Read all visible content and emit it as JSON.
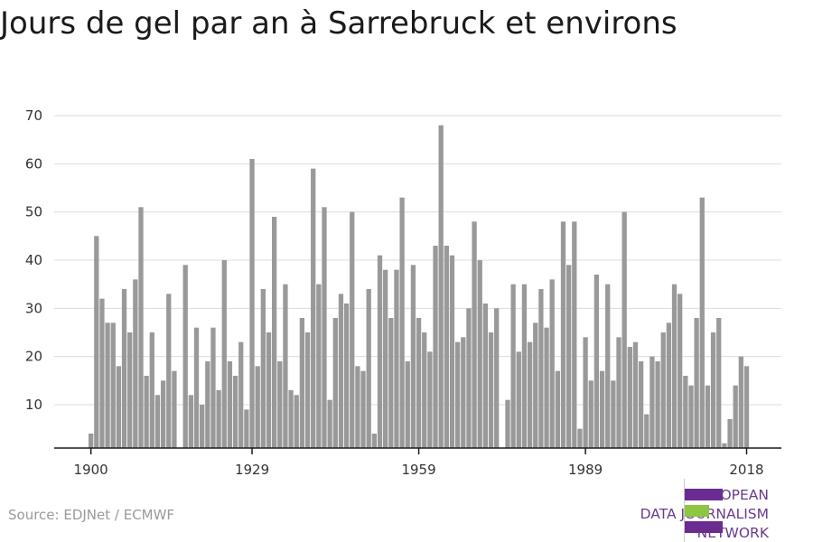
{
  "chart_data": {
    "type": "bar",
    "title": "Jours de gel par an à Sarrebruck et environs",
    "xlabel": "",
    "ylabel": "",
    "x_ticks": [
      "1900",
      "1929",
      "1959",
      "1989",
      "2018"
    ],
    "y_ticks": [
      10,
      20,
      30,
      40,
      50,
      60,
      70
    ],
    "ylim": [
      1,
      72
    ],
    "grid": true,
    "bar_color": "#999999",
    "start_year": 1900,
    "end_year": 2018,
    "categories": [
      1900,
      1901,
      1902,
      1903,
      1904,
      1905,
      1906,
      1907,
      1908,
      1909,
      1910,
      1911,
      1912,
      1913,
      1914,
      1915,
      1916,
      1917,
      1918,
      1919,
      1920,
      1921,
      1922,
      1923,
      1924,
      1925,
      1926,
      1927,
      1928,
      1929,
      1930,
      1931,
      1932,
      1933,
      1934,
      1935,
      1936,
      1937,
      1938,
      1939,
      1940,
      1941,
      1942,
      1943,
      1944,
      1945,
      1946,
      1947,
      1948,
      1949,
      1950,
      1951,
      1952,
      1953,
      1954,
      1955,
      1956,
      1957,
      1958,
      1959,
      1960,
      1961,
      1962,
      1963,
      1964,
      1965,
      1966,
      1967,
      1968,
      1969,
      1970,
      1971,
      1972,
      1973,
      1974,
      1975,
      1976,
      1977,
      1978,
      1979,
      1980,
      1981,
      1982,
      1983,
      1984,
      1985,
      1986,
      1987,
      1988,
      1989,
      1990,
      1991,
      1992,
      1993,
      1994,
      1995,
      1996,
      1997,
      1998,
      1999,
      2000,
      2001,
      2002,
      2003,
      2004,
      2005,
      2006,
      2007,
      2008,
      2009,
      2010,
      2011,
      2012,
      2013,
      2014,
      2015,
      2016,
      2017,
      2018
    ],
    "values": [
      4,
      45,
      32,
      27,
      27,
      18,
      34,
      25,
      36,
      51,
      16,
      25,
      12,
      15,
      33,
      17,
      null,
      39,
      12,
      26,
      10,
      19,
      26,
      13,
      40,
      19,
      16,
      23,
      9,
      61,
      18,
      34,
      25,
      49,
      19,
      35,
      13,
      12,
      28,
      25,
      59,
      35,
      51,
      11,
      28,
      33,
      31,
      50,
      18,
      17,
      34,
      4,
      41,
      38,
      28,
      38,
      53,
      19,
      39,
      28,
      25,
      21,
      43,
      68,
      43,
      41,
      23,
      24,
      30,
      48,
      40,
      31,
      25,
      30,
      null,
      11,
      35,
      21,
      35,
      23,
      27,
      34,
      26,
      36,
      17,
      48,
      39,
      48,
      5,
      24,
      15,
      37,
      17,
      35,
      15,
      24,
      50,
      22,
      23,
      19,
      8,
      20,
      19,
      25,
      27,
      35,
      33,
      16,
      14,
      28,
      53,
      14,
      25,
      28,
      2,
      7,
      14,
      20,
      18
    ]
  },
  "source": "Source: EDJNet / ECMWF",
  "logo": {
    "line1": "EUROPEAN",
    "line2": "DATA JOURNALISM",
    "line3": "NETWORK",
    "colors": {
      "purple": "#6b2c91",
      "green": "#8dc63f"
    }
  }
}
